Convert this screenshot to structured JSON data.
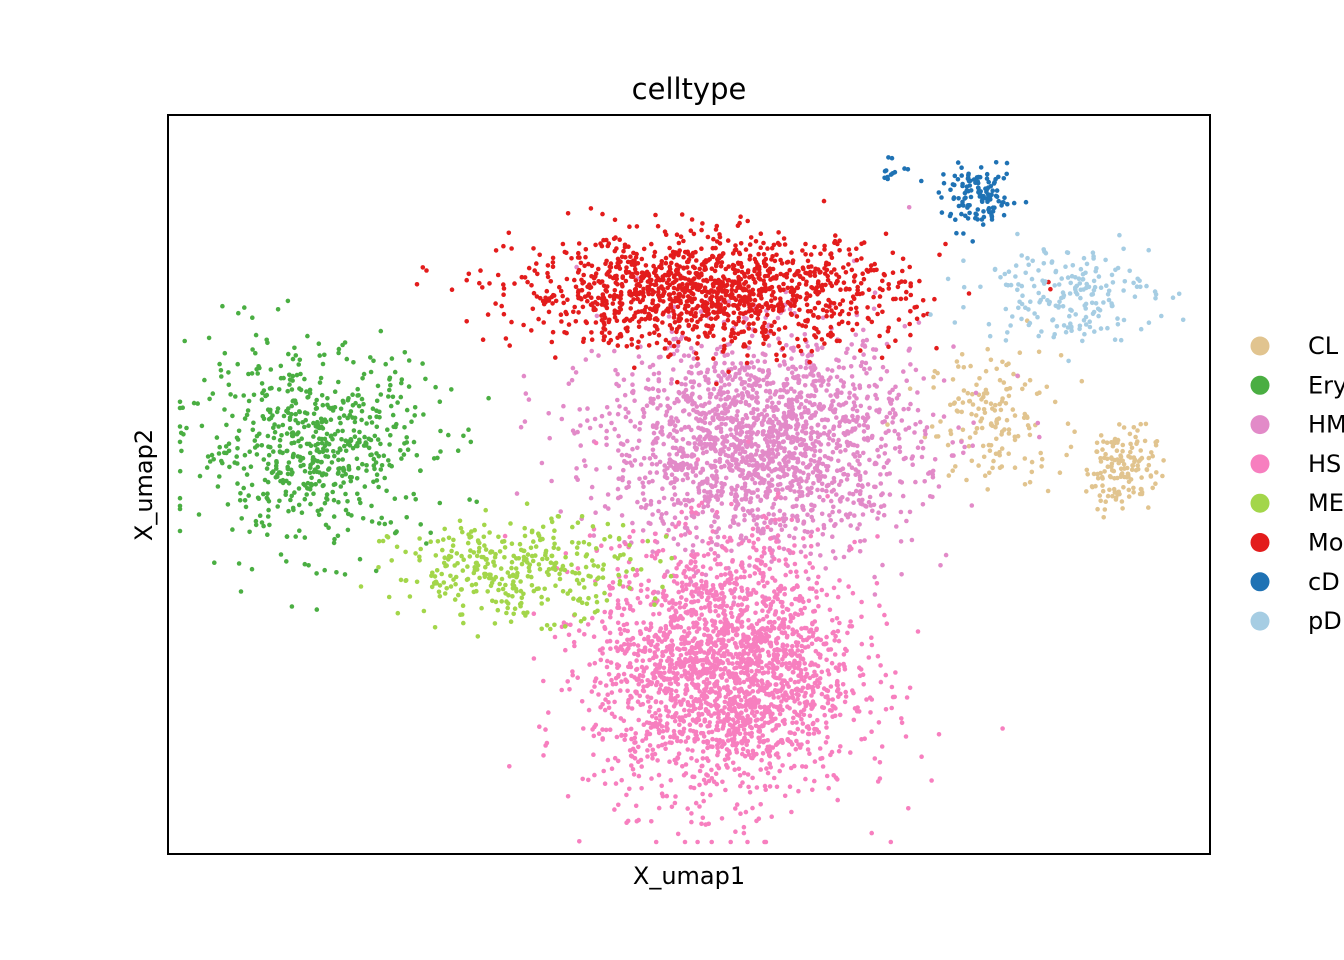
{
  "chart_data": {
    "type": "scatter",
    "title": "celltype",
    "xlabel": "X_umap1",
    "ylabel": "X_umap2",
    "xlim": [
      0,
      100
    ],
    "ylim": [
      0,
      100
    ],
    "grid": false,
    "legend_placement": "right, outside plot (labels clipped)",
    "series": [
      {
        "name": "CL",
        "color": "#e1c48f",
        "clusters": [
          {
            "cx": 80,
            "cy": 59,
            "sx": 3.8,
            "sy": 5.5,
            "n": 160
          },
          {
            "cx": 92.5,
            "cy": 52.5,
            "sx": 2.0,
            "sy": 3.5,
            "n": 150
          }
        ]
      },
      {
        "name": "Ery",
        "color": "#4aae42",
        "clusters": [
          {
            "cx": 13,
            "cy": 55.5,
            "sx": 7.0,
            "sy": 8.0,
            "n": 640
          }
        ]
      },
      {
        "name": "HM",
        "color": "#e28ac8",
        "clusters": [
          {
            "cx": 57,
            "cy": 56,
            "sx": 9.0,
            "sy": 9.0,
            "n": 1900
          }
        ]
      },
      {
        "name": "HS",
        "color": "#f77fbf",
        "clusters": [
          {
            "cx": 53.5,
            "cy": 24,
            "sx": 7.5,
            "sy": 10.5,
            "n": 2300
          }
        ]
      },
      {
        "name": "ME",
        "color": "#a3d64a",
        "clusters": [
          {
            "cx": 33,
            "cy": 38,
            "sx": 7.0,
            "sy": 4.0,
            "n": 360
          }
        ]
      },
      {
        "name": "Mo",
        "color": "#e31c1c",
        "clusters": [
          {
            "cx": 52,
            "cy": 77,
            "sx": 11.0,
            "sy": 4.5,
            "n": 1350
          }
        ]
      },
      {
        "name": "cD",
        "color": "#1f72b4",
        "clusters": [
          {
            "cx": 78.5,
            "cy": 90,
            "sx": 2.2,
            "sy": 2.4,
            "n": 130
          },
          {
            "cx": 70,
            "cy": 94,
            "sx": 1.0,
            "sy": 0.8,
            "n": 12
          }
        ]
      },
      {
        "name": "pD",
        "color": "#a6cde3",
        "clusters": [
          {
            "cx": 87,
            "cy": 77,
            "sx": 5.0,
            "sy": 4.0,
            "n": 200
          }
        ]
      }
    ]
  }
}
